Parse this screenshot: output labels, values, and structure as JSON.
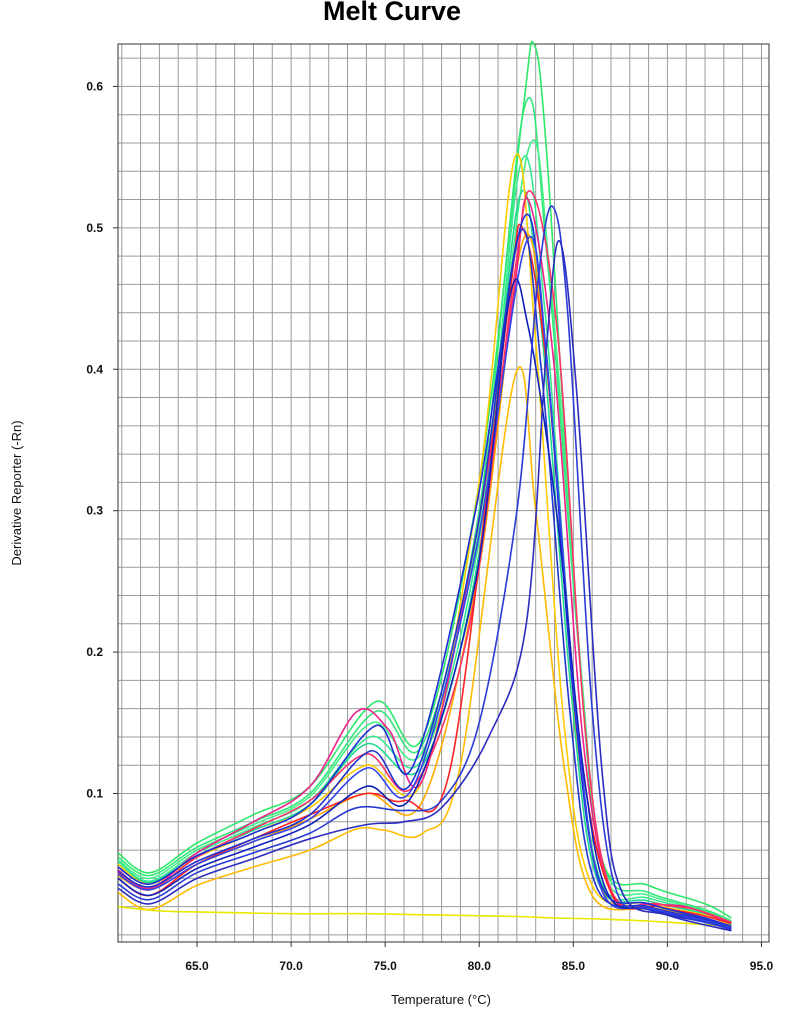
{
  "chart_data": {
    "type": "line",
    "title": "Melt Curve",
    "xlabel": "Temperature (°C)",
    "ylabel": "Derivative Reporter (-Rn)",
    "xlim": [
      60.8,
      95.4
    ],
    "ylim": [
      -0.005,
      0.63
    ],
    "x_ticks": [
      "65.0",
      "70.0",
      "75.0",
      "80.0",
      "85.0",
      "90.0",
      "95.0"
    ],
    "y_ticks": [
      "0.1",
      "0.2",
      "0.3",
      "0.4",
      "0.5",
      "0.6"
    ],
    "grid": true,
    "legend": "none",
    "series": [
      {
        "color": "#2ee86a",
        "values": [
          [
            60.8,
            0.058
          ],
          [
            62.5,
            0.044
          ],
          [
            65,
            0.065
          ],
          [
            68,
            0.085
          ],
          [
            71,
            0.105
          ],
          [
            74.5,
            0.165
          ],
          [
            77,
            0.14
          ],
          [
            80,
            0.32
          ],
          [
            82.3,
            0.58
          ],
          [
            82.9,
            0.63
          ],
          [
            83.6,
            0.55
          ],
          [
            85.2,
            0.22
          ],
          [
            86.5,
            0.055
          ],
          [
            89,
            0.035
          ],
          [
            92,
            0.022
          ],
          [
            93.4,
            0.012
          ]
        ]
      },
      {
        "color": "#32e878",
        "values": [
          [
            60.8,
            0.055
          ],
          [
            62.5,
            0.042
          ],
          [
            65,
            0.062
          ],
          [
            68,
            0.08
          ],
          [
            71,
            0.1
          ],
          [
            74.5,
            0.158
          ],
          [
            77,
            0.135
          ],
          [
            80,
            0.3
          ],
          [
            82.4,
            0.585
          ],
          [
            83.6,
            0.48
          ],
          [
            85.3,
            0.2
          ],
          [
            86.6,
            0.05
          ],
          [
            89,
            0.03
          ],
          [
            92,
            0.018
          ],
          [
            93.4,
            0.01
          ]
        ]
      },
      {
        "color": "#44ee88",
        "values": [
          [
            60.8,
            0.053
          ],
          [
            62.5,
            0.04
          ],
          [
            65,
            0.06
          ],
          [
            68,
            0.078
          ],
          [
            71,
            0.098
          ],
          [
            74.3,
            0.15
          ],
          [
            77,
            0.13
          ],
          [
            80,
            0.29
          ],
          [
            82.6,
            0.555
          ],
          [
            83.8,
            0.46
          ],
          [
            85.4,
            0.19
          ],
          [
            86.6,
            0.045
          ],
          [
            89,
            0.028
          ],
          [
            92,
            0.017
          ],
          [
            93.4,
            0.009
          ]
        ]
      },
      {
        "color": "#36e890",
        "values": [
          [
            60.8,
            0.052
          ],
          [
            62.5,
            0.038
          ],
          [
            65,
            0.058
          ],
          [
            68,
            0.076
          ],
          [
            71,
            0.095
          ],
          [
            74.2,
            0.14
          ],
          [
            77,
            0.125
          ],
          [
            80,
            0.28
          ],
          [
            82.2,
            0.545
          ],
          [
            83.5,
            0.44
          ],
          [
            85,
            0.18
          ],
          [
            86.4,
            0.04
          ],
          [
            89,
            0.026
          ],
          [
            92,
            0.016
          ],
          [
            93.4,
            0.008
          ]
        ]
      },
      {
        "color": "#20d890",
        "values": [
          [
            60.8,
            0.05
          ],
          [
            62.5,
            0.037
          ],
          [
            65,
            0.056
          ],
          [
            68,
            0.074
          ],
          [
            71,
            0.092
          ],
          [
            74,
            0.135
          ],
          [
            77,
            0.12
          ],
          [
            80,
            0.27
          ],
          [
            82.1,
            0.52
          ],
          [
            83.3,
            0.43
          ],
          [
            84.9,
            0.17
          ],
          [
            86.3,
            0.038
          ],
          [
            89,
            0.024
          ],
          [
            92,
            0.015
          ],
          [
            93.4,
            0.007
          ]
        ]
      },
      {
        "color": "#ffcc00",
        "values": [
          [
            60.8,
            0.05
          ],
          [
            62.5,
            0.036
          ],
          [
            65,
            0.055
          ],
          [
            68,
            0.072
          ],
          [
            71,
            0.09
          ],
          [
            74,
            0.12
          ],
          [
            77,
            0.11
          ],
          [
            80,
            0.32
          ],
          [
            81.9,
            0.55
          ],
          [
            83,
            0.42
          ],
          [
            84.5,
            0.15
          ],
          [
            86,
            0.035
          ],
          [
            89,
            0.022
          ],
          [
            92,
            0.014
          ],
          [
            93.4,
            0.006
          ]
        ]
      },
      {
        "color": "#ffaa00",
        "values": [
          [
            60.8,
            0.042
          ],
          [
            62.5,
            0.032
          ],
          [
            65,
            0.05
          ],
          [
            68,
            0.066
          ],
          [
            71,
            0.082
          ],
          [
            74,
            0.1
          ],
          [
            77,
            0.095
          ],
          [
            80,
            0.26
          ],
          [
            82.3,
            0.49
          ],
          [
            83.6,
            0.4
          ],
          [
            85.2,
            0.14
          ],
          [
            86.6,
            0.03
          ],
          [
            89,
            0.02
          ],
          [
            92,
            0.012
          ],
          [
            93.4,
            0.005
          ]
        ]
      },
      {
        "color": "#ffbb00",
        "values": [
          [
            60.8,
            0.03
          ],
          [
            62.5,
            0.018
          ],
          [
            65,
            0.035
          ],
          [
            68,
            0.048
          ],
          [
            71,
            0.06
          ],
          [
            73.5,
            0.075
          ],
          [
            75,
            0.074
          ],
          [
            77,
            0.072
          ],
          [
            79,
            0.12
          ],
          [
            81.9,
            0.395
          ],
          [
            83,
            0.3
          ],
          [
            84.5,
            0.12
          ],
          [
            86,
            0.028
          ],
          [
            89,
            0.018
          ],
          [
            92,
            0.01
          ],
          [
            93.4,
            0.005
          ]
        ]
      },
      {
        "color": "#e8e800",
        "values": [
          [
            60.8,
            0.02
          ],
          [
            63,
            0.017
          ],
          [
            66,
            0.016
          ],
          [
            70,
            0.015
          ],
          [
            74,
            0.015
          ],
          [
            78,
            0.014
          ],
          [
            82,
            0.013
          ],
          [
            84,
            0.012
          ],
          [
            87,
            0.011
          ],
          [
            90,
            0.009
          ],
          [
            93.4,
            0.006
          ]
        ]
      },
      {
        "color": "#ee2288",
        "values": [
          [
            60.8,
            0.046
          ],
          [
            62.5,
            0.033
          ],
          [
            65,
            0.058
          ],
          [
            68,
            0.08
          ],
          [
            71,
            0.105
          ],
          [
            73.5,
            0.158
          ],
          [
            75.2,
            0.145
          ],
          [
            77,
            0.11
          ],
          [
            79.8,
            0.28
          ],
          [
            81.8,
            0.45
          ],
          [
            82.6,
            0.52
          ],
          [
            84,
            0.4
          ],
          [
            85.5,
            0.14
          ],
          [
            87,
            0.03
          ],
          [
            89,
            0.022
          ],
          [
            91,
            0.02
          ],
          [
            93.4,
            0.008
          ]
        ]
      },
      {
        "color": "#ff3366",
        "values": [
          [
            60.8,
            0.044
          ],
          [
            62.5,
            0.032
          ],
          [
            65,
            0.055
          ],
          [
            68,
            0.075
          ],
          [
            71,
            0.095
          ],
          [
            74,
            0.128
          ],
          [
            76.5,
            0.105
          ],
          [
            79.5,
            0.22
          ],
          [
            81.8,
            0.46
          ],
          [
            82.8,
            0.525
          ],
          [
            84.2,
            0.42
          ],
          [
            85.6,
            0.15
          ],
          [
            87,
            0.032
          ],
          [
            89.5,
            0.022
          ],
          [
            91.5,
            0.018
          ],
          [
            93.4,
            0.009
          ]
        ]
      },
      {
        "color": "#ff2222",
        "values": [
          [
            60.8,
            0.04
          ],
          [
            62.5,
            0.028
          ],
          [
            65,
            0.05
          ],
          [
            68,
            0.068
          ],
          [
            71,
            0.085
          ],
          [
            74,
            0.1
          ],
          [
            76,
            0.095
          ],
          [
            78.5,
            0.12
          ],
          [
            81.5,
            0.44
          ],
          [
            82.3,
            0.5
          ],
          [
            83.6,
            0.4
          ],
          [
            85.3,
            0.14
          ],
          [
            87,
            0.03
          ],
          [
            89.5,
            0.02
          ],
          [
            91.8,
            0.014
          ],
          [
            93.4,
            0.008
          ]
        ]
      },
      {
        "color": "#1a2fd8",
        "values": [
          [
            60.8,
            0.048
          ],
          [
            62.5,
            0.036
          ],
          [
            65,
            0.056
          ],
          [
            68,
            0.072
          ],
          [
            71,
            0.092
          ],
          [
            74.5,
            0.148
          ],
          [
            76.5,
            0.12
          ],
          [
            79.8,
            0.3
          ],
          [
            82.3,
            0.505
          ],
          [
            83.5,
            0.42
          ],
          [
            85,
            0.17
          ],
          [
            86.4,
            0.038
          ],
          [
            89,
            0.022
          ],
          [
            92,
            0.012
          ],
          [
            93.4,
            0.006
          ]
        ]
      },
      {
        "color": "#2233cc",
        "values": [
          [
            60.8,
            0.045
          ],
          [
            62.5,
            0.034
          ],
          [
            65,
            0.052
          ],
          [
            68,
            0.068
          ],
          [
            71,
            0.085
          ],
          [
            74.2,
            0.13
          ],
          [
            76.5,
            0.11
          ],
          [
            79.8,
            0.28
          ],
          [
            82.1,
            0.495
          ],
          [
            83.3,
            0.4
          ],
          [
            84.8,
            0.16
          ],
          [
            86.2,
            0.035
          ],
          [
            89,
            0.02
          ],
          [
            92,
            0.011
          ],
          [
            93.4,
            0.005
          ]
        ]
      },
      {
        "color": "#3344ee",
        "values": [
          [
            60.8,
            0.043
          ],
          [
            62.5,
            0.032
          ],
          [
            65,
            0.05
          ],
          [
            68,
            0.066
          ],
          [
            71,
            0.082
          ],
          [
            74,
            0.118
          ],
          [
            76.5,
            0.105
          ],
          [
            79.8,
            0.27
          ],
          [
            82.5,
            0.49
          ],
          [
            83.7,
            0.39
          ],
          [
            85.2,
            0.15
          ],
          [
            86.5,
            0.032
          ],
          [
            89,
            0.019
          ],
          [
            92,
            0.01
          ],
          [
            93.4,
            0.005
          ]
        ]
      },
      {
        "color": "#1122bb",
        "values": [
          [
            60.8,
            0.04
          ],
          [
            62.5,
            0.028
          ],
          [
            65,
            0.047
          ],
          [
            68,
            0.062
          ],
          [
            71,
            0.078
          ],
          [
            74,
            0.105
          ],
          [
            76.5,
            0.1
          ],
          [
            79.8,
            0.25
          ],
          [
            81.6,
            0.45
          ],
          [
            82.6,
            0.43
          ],
          [
            84.1,
            0.3
          ],
          [
            85.5,
            0.12
          ],
          [
            86.8,
            0.03
          ],
          [
            89,
            0.018
          ],
          [
            92,
            0.009
          ],
          [
            93.4,
            0.004
          ]
        ]
      },
      {
        "color": "#2a3bd5",
        "values": [
          [
            60.8,
            0.036
          ],
          [
            62.5,
            0.025
          ],
          [
            65,
            0.044
          ],
          [
            68,
            0.058
          ],
          [
            71,
            0.072
          ],
          [
            73.5,
            0.09
          ],
          [
            76,
            0.088
          ],
          [
            78,
            0.095
          ],
          [
            80,
            0.15
          ],
          [
            82,
            0.3
          ],
          [
            83.1,
            0.46
          ],
          [
            83.9,
            0.515
          ],
          [
            84.7,
            0.44
          ],
          [
            86,
            0.16
          ],
          [
            87.2,
            0.035
          ],
          [
            89,
            0.018
          ],
          [
            92,
            0.009
          ],
          [
            93.4,
            0.004
          ]
        ]
      },
      {
        "color": "#2c2cc0",
        "values": [
          [
            60.8,
            0.033
          ],
          [
            62.5,
            0.022
          ],
          [
            65,
            0.04
          ],
          [
            68,
            0.054
          ],
          [
            71,
            0.068
          ],
          [
            74,
            0.078
          ],
          [
            76,
            0.08
          ],
          [
            78,
            0.09
          ],
          [
            80.5,
            0.14
          ],
          [
            82.5,
            0.22
          ],
          [
            83.6,
            0.42
          ],
          [
            84.3,
            0.49
          ],
          [
            85.2,
            0.38
          ],
          [
            86.5,
            0.12
          ],
          [
            87.6,
            0.03
          ],
          [
            90,
            0.014
          ],
          [
            93.4,
            0.003
          ]
        ]
      }
    ]
  }
}
